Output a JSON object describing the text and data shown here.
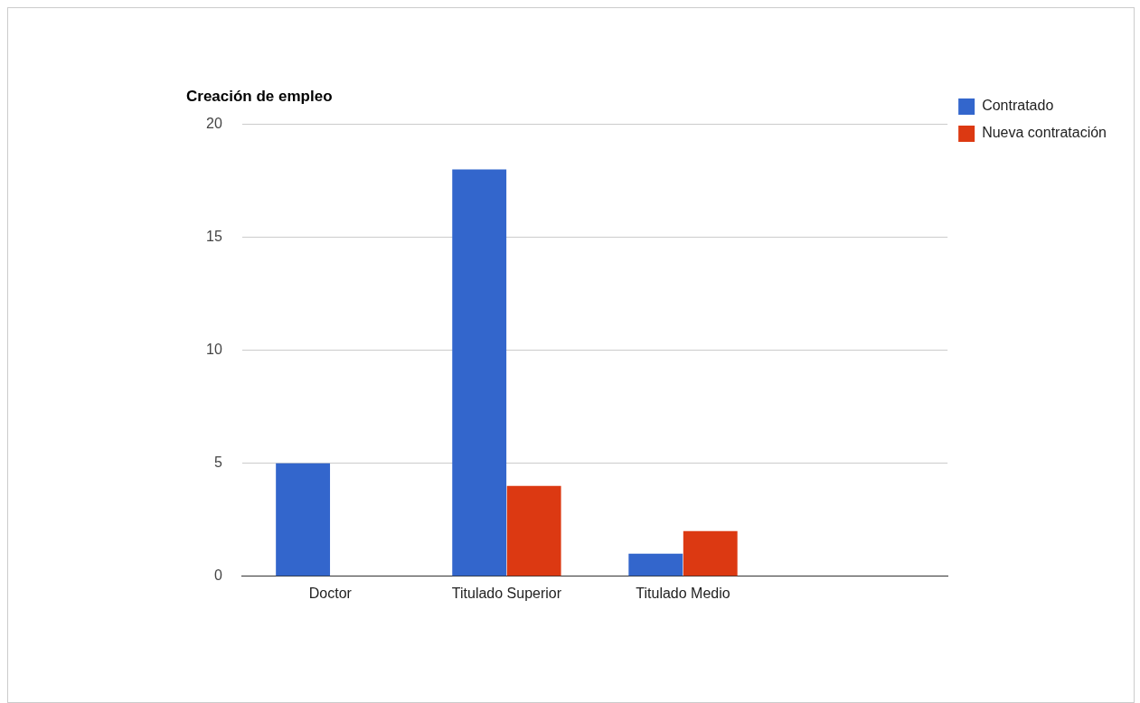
{
  "chart_data": {
    "type": "bar",
    "title": "Creación de empleo",
    "categories": [
      "Doctor",
      "Titulado Superior",
      "Titulado Medio",
      null
    ],
    "series": [
      {
        "name": "Contratado",
        "color": "#3366cc",
        "values": [
          5,
          18,
          1,
          null
        ]
      },
      {
        "name": "Nueva contratación",
        "color": "#dc3912",
        "values": [
          0,
          4,
          2,
          null
        ]
      }
    ],
    "ylim": [
      0,
      20
    ],
    "yticks": [
      0,
      5,
      10,
      15,
      20
    ],
    "grid": "y",
    "legend": "top right"
  }
}
